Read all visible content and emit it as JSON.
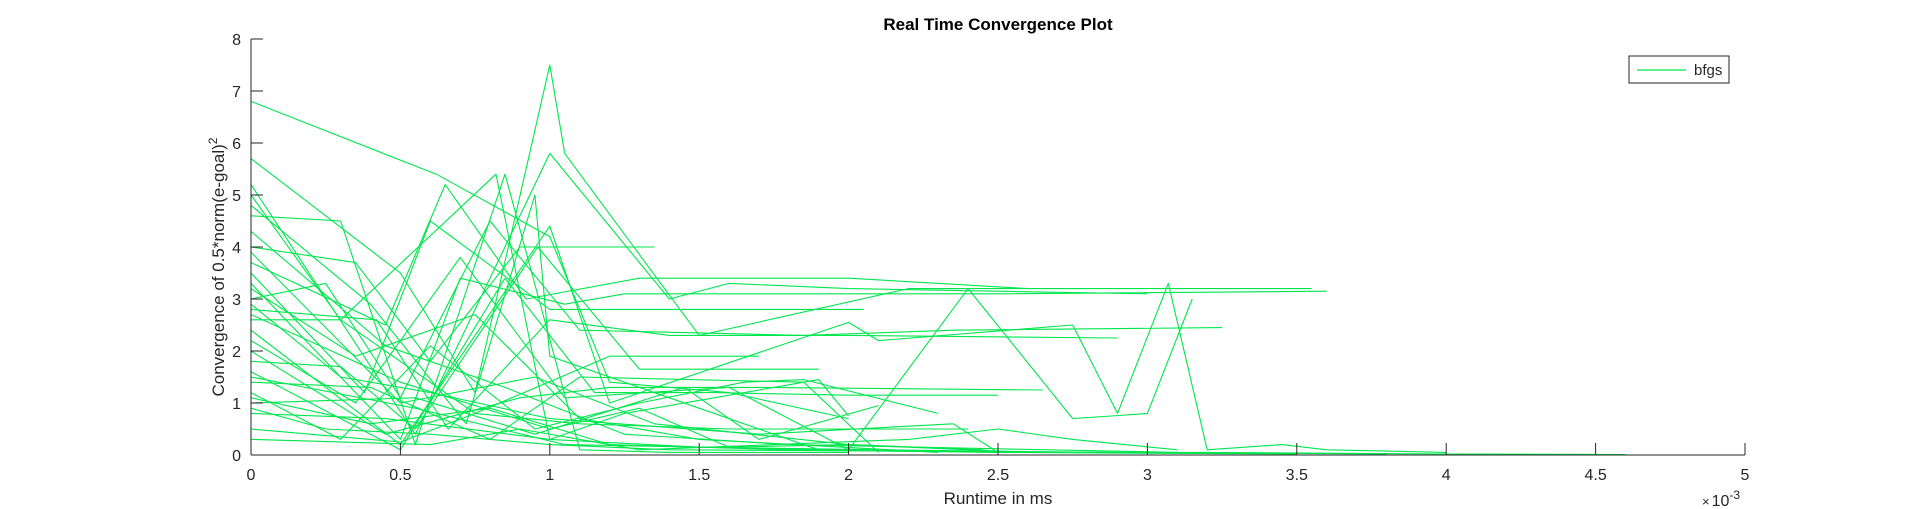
{
  "chart_data": {
    "type": "line",
    "title": "Real Time Convergence Plot",
    "xlabel": "Runtime in ms",
    "ylabel_base": "Convergence of 0.5*norm(e-goal)",
    "ylabel_sup": "2",
    "x_multiplier": {
      "base": "10",
      "exponent": "-3",
      "sign": "×"
    },
    "xlim": [
      0,
      5
    ],
    "ylim": [
      0,
      8
    ],
    "xticks": [
      0,
      0.5,
      1,
      1.5,
      2,
      2.5,
      3,
      3.5,
      4,
      4.5,
      5
    ],
    "xtick_labels": [
      "0",
      "0.5",
      "1",
      "1.5",
      "2",
      "2.5",
      "3",
      "3.5",
      "4",
      "4.5",
      "5"
    ],
    "yticks": [
      0,
      1,
      2,
      3,
      4,
      5,
      6,
      7,
      8
    ],
    "ytick_labels": [
      "0",
      "1",
      "2",
      "3",
      "4",
      "5",
      "6",
      "7",
      "8"
    ],
    "grid": false,
    "legend": {
      "position": "top-right",
      "entries": [
        "bfgs"
      ]
    },
    "line_color": "#00e64d",
    "series": [
      {
        "x": [
          0,
          0.62,
          1.0,
          1.2,
          1.6,
          2.0
        ],
        "y": [
          6.8,
          5.4,
          4.2,
          1.4,
          1.2,
          0.7
        ]
      },
      {
        "x": [
          0,
          0.5,
          0.75,
          1.0,
          1.05,
          1.5,
          2.2,
          3.55
        ],
        "y": [
          5.7,
          3.5,
          1.2,
          7.5,
          5.8,
          2.3,
          3.2,
          3.2
        ]
      },
      {
        "x": [
          0,
          0.55,
          1.0,
          1.4,
          1.6,
          2.0,
          3.0
        ],
        "y": [
          5.2,
          0.4,
          5.8,
          3.0,
          3.3,
          3.2,
          3.1
        ]
      },
      {
        "x": [
          0,
          0.3,
          0.82,
          1.0,
          1.5,
          2.0
        ],
        "y": [
          5.0,
          2.6,
          5.4,
          0.3,
          0.15,
          0.1
        ]
      },
      {
        "x": [
          0,
          0.4,
          0.72,
          0.95,
          1.0,
          1.4,
          1.9
        ],
        "y": [
          4.8,
          2.9,
          0.6,
          5.0,
          1.9,
          1.1,
          0.1
        ]
      },
      {
        "x": [
          0,
          0.3,
          0.55,
          0.85,
          1.1,
          1.4,
          2.0
        ],
        "y": [
          4.6,
          4.5,
          0.2,
          5.4,
          0.1,
          0.05,
          0.05
        ]
      },
      {
        "x": [
          0,
          0.35,
          0.6,
          0.9,
          1.35
        ],
        "y": [
          4.0,
          3.7,
          1.8,
          4.0,
          4.0
        ]
      },
      {
        "x": [
          0,
          0.45,
          0.65,
          0.92,
          1.3,
          2.0,
          2.6
        ],
        "y": [
          3.7,
          2.5,
          5.2,
          3.0,
          3.4,
          3.4,
          3.2
        ]
      },
      {
        "x": [
          0,
          0.38,
          0.6,
          1.0,
          1.5,
          2.05
        ],
        "y": [
          3.5,
          1.2,
          4.5,
          2.8,
          2.8,
          2.8
        ]
      },
      {
        "x": [
          0,
          0.5,
          0.7,
          1.05,
          1.25,
          2.5,
          3.6
        ],
        "y": [
          3.3,
          0.3,
          3.4,
          2.9,
          3.1,
          3.1,
          3.15
        ]
      },
      {
        "x": [
          0,
          0.25,
          0.5,
          0.8,
          1.1,
          1.85,
          2.35,
          3.25
        ],
        "y": [
          3.0,
          3.3,
          1.1,
          4.5,
          2.4,
          2.3,
          2.4,
          2.45
        ]
      },
      {
        "x": [
          0,
          0.42,
          0.66,
          1.0,
          1.4,
          2.0,
          2.9
        ],
        "y": [
          2.8,
          2.6,
          0.5,
          2.6,
          2.3,
          2.3,
          2.25
        ]
      },
      {
        "x": [
          0,
          0.3,
          0.75,
          1.2,
          1.7
        ],
        "y": [
          2.6,
          2.6,
          0.8,
          1.9,
          1.9
        ]
      },
      {
        "x": [
          0,
          0.5,
          1.0,
          1.2,
          2.0,
          2.1,
          2.75,
          2.9,
          3.07,
          3.2,
          3.45,
          3.6,
          4.0
        ],
        "y": [
          2.4,
          0.2,
          4.4,
          1.0,
          2.55,
          2.2,
          2.5,
          0.8,
          3.3,
          0.1,
          0.2,
          0.1,
          0.05
        ]
      },
      {
        "x": [
          0,
          0.35,
          0.7,
          1.05,
          1.6,
          2.0,
          2.4,
          2.75,
          2.88,
          3.0,
          3.15
        ],
        "y": [
          2.2,
          1.0,
          3.8,
          1.1,
          1.3,
          0.1,
          3.2,
          0.7,
          0.75,
          0.8,
          3.0
        ]
      },
      {
        "x": [
          0,
          0.45,
          0.9,
          1.2,
          1.7,
          2.65
        ],
        "y": [
          2.0,
          0.4,
          1.1,
          1.3,
          1.3,
          1.25
        ]
      },
      {
        "x": [
          0,
          0.3,
          0.55,
          0.96,
          1.3,
          1.9
        ],
        "y": [
          1.8,
          1.7,
          0.5,
          4.0,
          1.65,
          1.65
        ]
      },
      {
        "x": [
          0,
          0.5,
          0.85,
          1.15,
          1.55,
          2.0,
          2.5
        ],
        "y": [
          1.6,
          0.1,
          3.4,
          1.2,
          1.2,
          1.15,
          1.15
        ]
      },
      {
        "x": [
          0,
          0.4,
          0.8,
          1.1,
          1.85,
          2.1
        ],
        "y": [
          1.4,
          1.3,
          0.3,
          1.5,
          1.4,
          0.05
        ]
      },
      {
        "x": [
          0,
          0.3,
          0.6,
          0.95,
          1.3,
          1.65,
          1.85,
          2.3
        ],
        "y": [
          1.2,
          0.3,
          2.1,
          0.5,
          1.0,
          1.4,
          1.45,
          0.8
        ]
      },
      {
        "x": [
          0,
          0.55,
          0.95,
          1.45,
          1.7,
          2.1
        ],
        "y": [
          1.0,
          1.1,
          0.4,
          1.3,
          0.3,
          0.95
        ]
      },
      {
        "x": [
          0,
          0.45,
          1.0,
          1.25,
          1.9,
          2.0
        ],
        "y": [
          0.8,
          0.7,
          0.3,
          0.8,
          1.45,
          0.75
        ]
      },
      {
        "x": [
          0,
          0.5,
          0.75,
          1.1,
          1.6,
          2.4
        ],
        "y": [
          0.5,
          0.25,
          0.8,
          0.6,
          0.5,
          0.5
        ]
      },
      {
        "x": [
          0,
          0.6,
          0.9,
          1.3,
          2.2,
          2.5,
          2.75,
          3.1
        ],
        "y": [
          0.3,
          0.2,
          0.5,
          0.1,
          0.3,
          0.5,
          0.3,
          0.1
        ]
      },
      {
        "x": [
          0,
          0.3,
          0.6,
          1.0,
          1.7,
          2.35,
          2.5,
          3.5
        ],
        "y": [
          2.9,
          1.5,
          1.2,
          0.7,
          0.4,
          0.6,
          0.05,
          0.02
        ]
      },
      {
        "x": [
          0,
          0.4,
          0.8,
          1.2,
          1.8,
          2.5,
          3.2,
          4.0,
          4.6
        ],
        "y": [
          1.1,
          0.6,
          0.9,
          0.2,
          0.1,
          0.05,
          0.05,
          0.02,
          0.01
        ]
      },
      {
        "x": [
          0,
          0.5,
          1.0,
          1.3,
          1.6,
          2.0,
          2.45
        ],
        "y": [
          2.7,
          1.4,
          0.5,
          0.9,
          0.15,
          0.2,
          0.1
        ]
      },
      {
        "x": [
          0,
          0.35,
          0.75,
          1.1,
          1.5,
          2.3
        ],
        "y": [
          3.2,
          1.9,
          2.7,
          0.7,
          0.3,
          0.05
        ]
      },
      {
        "x": [
          0,
          0.45,
          0.85,
          1.25,
          1.8,
          3.1
        ],
        "y": [
          4.3,
          2.1,
          1.3,
          0.4,
          0.2,
          0.05
        ]
      },
      {
        "x": [
          0,
          0.25,
          0.6,
          1.0,
          1.4,
          2.0,
          2.8,
          3.8
        ],
        "y": [
          0.9,
          0.5,
          0.4,
          0.2,
          0.1,
          0.08,
          0.05,
          0.02
        ]
      },
      {
        "x": [
          0,
          0.5,
          0.95,
          1.35,
          2.0,
          2.6
        ],
        "y": [
          3.9,
          1.0,
          1.5,
          0.6,
          0.2,
          0.05
        ]
      },
      {
        "x": [
          0,
          0.55,
          1.05,
          1.5,
          2.1,
          2.7,
          3.4
        ],
        "y": [
          1.5,
          0.9,
          0.2,
          0.15,
          0.1,
          0.06,
          0.03
        ]
      }
    ]
  }
}
